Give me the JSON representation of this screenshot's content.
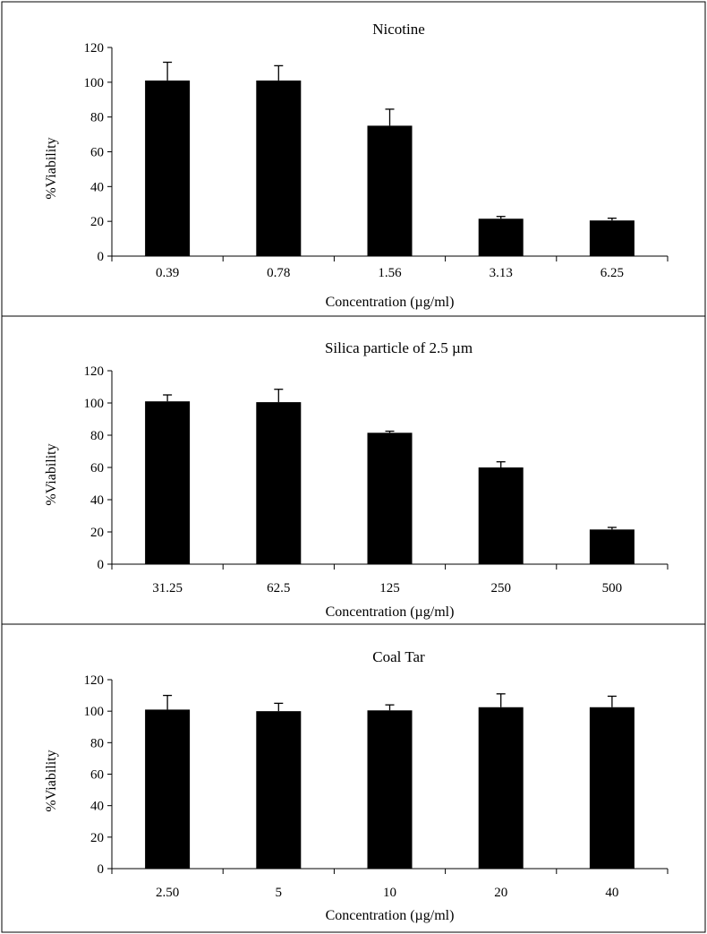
{
  "chart_data": [
    {
      "type": "bar",
      "title": "Nicotine",
      "xlabel": "Concentration (µg/ml)",
      "ylabel": "%Viability",
      "ylim": [
        0,
        120
      ],
      "yticks": [
        0,
        20,
        40,
        60,
        80,
        100,
        120
      ],
      "categories": [
        "0.39",
        "0.78",
        "1.56",
        "3.13",
        "6.25"
      ],
      "values": [
        101,
        101,
        75,
        21.5,
        20.5
      ],
      "errors": [
        10.5,
        8.5,
        9.5,
        1.3,
        1.3
      ],
      "bar_color": "#000000"
    },
    {
      "type": "bar",
      "title": "Silica particle of 2.5 µm",
      "xlabel": "Concentration (µg/ml)",
      "ylabel": "%Viability",
      "ylim": [
        0,
        120
      ],
      "yticks": [
        0,
        20,
        40,
        60,
        80,
        100,
        120
      ],
      "categories": [
        "31.25",
        "62.5",
        "125",
        "250",
        "500"
      ],
      "values": [
        101,
        100.5,
        81.5,
        60,
        21.5
      ],
      "errors": [
        4,
        8,
        1,
        3.5,
        1.3
      ],
      "bar_color": "#000000"
    },
    {
      "type": "bar",
      "title": "Coal Tar",
      "xlabel": "Concentration (µg/ml)",
      "ylabel": "%Viability",
      "ylim": [
        0,
        120
      ],
      "yticks": [
        0,
        20,
        40,
        60,
        80,
        100,
        120
      ],
      "categories": [
        "2.50",
        "5",
        "10",
        "20",
        "40"
      ],
      "values": [
        101,
        100,
        100.5,
        102.5,
        102.5
      ],
      "errors": [
        9,
        5,
        3.5,
        8.5,
        7
      ],
      "bar_color": "#000000"
    }
  ]
}
